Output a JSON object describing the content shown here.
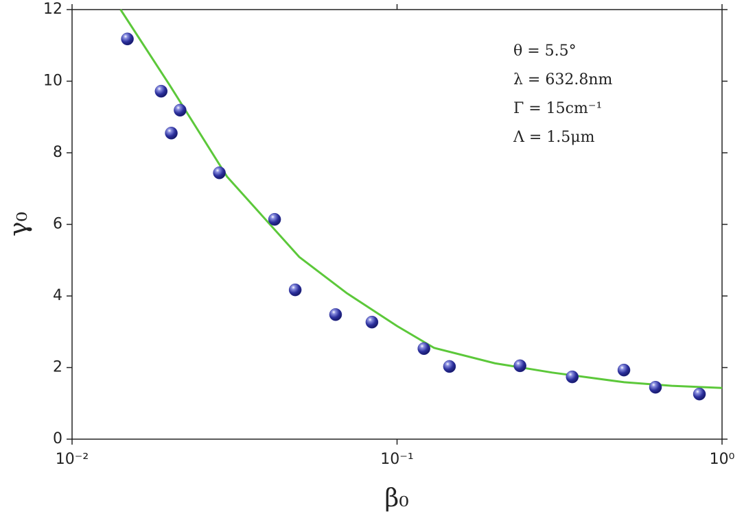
{
  "chart_data": {
    "type": "scatter",
    "xlabel": "β₀",
    "ylabel": "γ₀",
    "xscale": "log",
    "xlim": [
      0.01,
      1
    ],
    "ylim": [
      0,
      12
    ],
    "xticks": [
      {
        "value": 0.01,
        "label": "10⁻²"
      },
      {
        "value": 0.1,
        "label": "10⁻¹"
      },
      {
        "value": 1,
        "label": "10⁰"
      }
    ],
    "yticks": [
      0,
      2,
      4,
      6,
      8,
      10,
      12
    ],
    "annotations": [
      "θ = 5.5°",
      "λ = 632.8nm",
      "Γ = 15cm⁻¹",
      "Λ = 1.5μm"
    ],
    "series": [
      {
        "type": "scatter",
        "color": "#2b2f9c",
        "x": [
          0.0148,
          0.0188,
          0.0215,
          0.0202,
          0.0284,
          0.042,
          0.0486,
          0.0647,
          0.0837,
          0.121,
          0.145,
          0.239,
          0.346,
          0.499,
          0.624,
          0.852
        ],
        "values": [
          11.18,
          9.72,
          9.19,
          8.55,
          7.44,
          6.14,
          4.17,
          3.48,
          3.27,
          2.53,
          2.03,
          2.05,
          1.74,
          1.93,
          1.45,
          1.26
        ]
      },
      {
        "type": "line",
        "color": "#5cc83a",
        "x": [
          0.0141,
          0.02,
          0.03,
          0.05,
          0.07,
          0.1,
          0.13,
          0.2,
          0.3,
          0.5,
          0.7,
          1.0
        ],
        "values": [
          12,
          9.88,
          7.33,
          5.09,
          4.08,
          3.16,
          2.55,
          2.12,
          1.86,
          1.59,
          1.49,
          1.43
        ]
      }
    ]
  }
}
